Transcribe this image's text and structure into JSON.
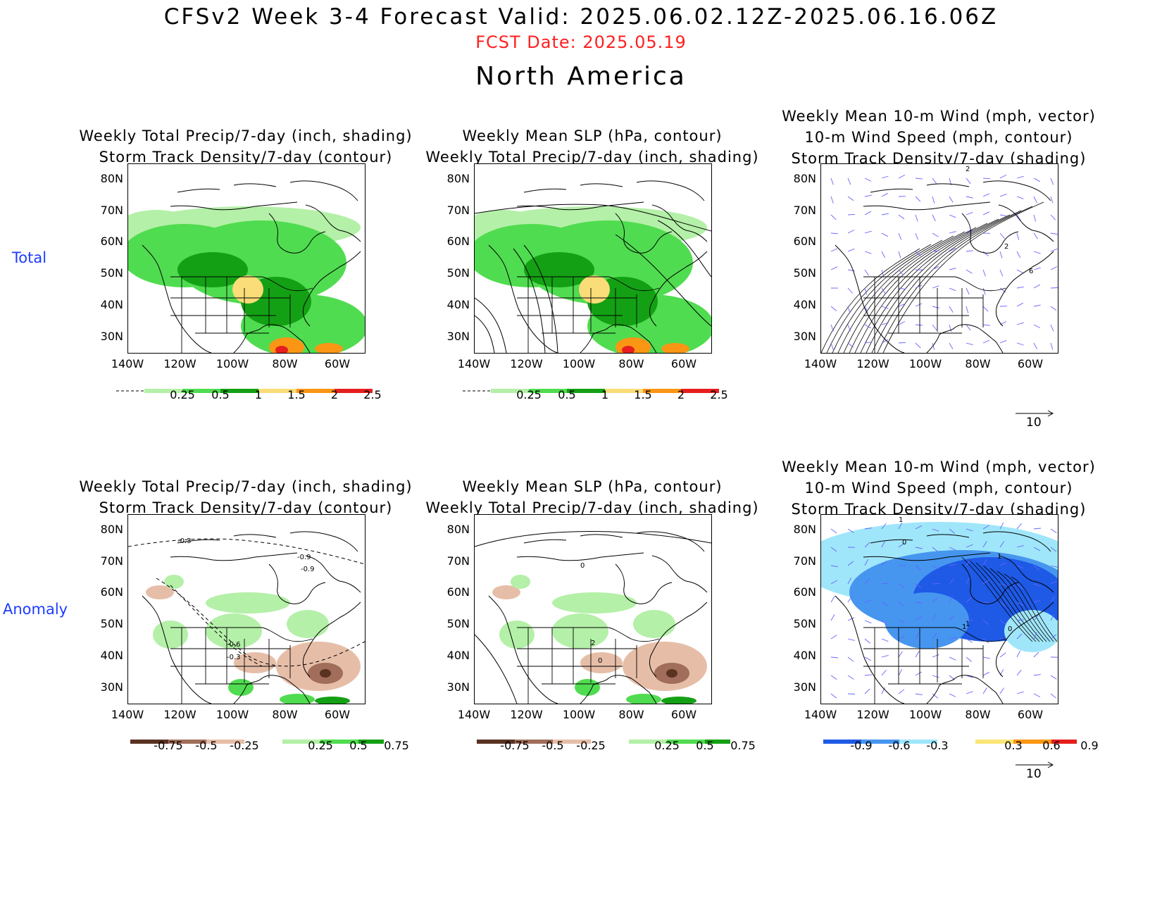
{
  "header": {
    "title": "CFSv2 Week 3-4 Forecast        Valid: 2025.06.02.12Z-2025.06.16.06Z",
    "fcst_date": "FCST Date: 2025.05.19",
    "region": "North America"
  },
  "row_labels": {
    "total": "Total",
    "anomaly": "Anomaly"
  },
  "axes": {
    "lat": [
      "80N",
      "70N",
      "60N",
      "50N",
      "40N",
      "30N"
    ],
    "lon": [
      "140W",
      "120W",
      "100W",
      "80W",
      "60W"
    ]
  },
  "panels": [
    {
      "id": "p1",
      "title": [
        "Weekly Total Precip/7-day (inch, shading)",
        "Storm Track Density/7-day (contour)"
      ],
      "colorbar": [
        "0.25",
        "0.5",
        "1",
        "1.5",
        "2",
        "2.5"
      ],
      "contours": []
    },
    {
      "id": "p2",
      "title": [
        "Weekly Mean SLP (hPa, contour)",
        "Weekly Total Precip/7-day (inch, shading)"
      ],
      "colorbar": [
        "0.25",
        "0.5",
        "1",
        "1.5",
        "2",
        "2.5"
      ],
      "contours": [
        "1017.5",
        "1015",
        "1012.5",
        "1010"
      ]
    },
    {
      "id": "p3",
      "title": [
        "Weekly Mean 10-m Wind (mph, vector)",
        "10-m Wind Speed (mph, contour)",
        "Storm Track Density/7-day (shading)"
      ],
      "colorbar": [],
      "vector_ref": "10",
      "contours": [
        "2",
        "2",
        "6"
      ]
    },
    {
      "id": "p4",
      "title": [
        "Weekly Total Precip/7-day (inch, shading)",
        "Storm Track Density/7-day (contour)"
      ],
      "colorbar": [
        "-0.75",
        "-0.5",
        "-0.25",
        "0.25",
        "0.5",
        "0.75"
      ],
      "contours": [
        "-0.3",
        "-0.9",
        "-0.9",
        "-0.6",
        "-0.3"
      ]
    },
    {
      "id": "p5",
      "title": [
        "Weekly Mean SLP (hPa, contour)",
        "Weekly Total Precip/7-day (inch, shading)"
      ],
      "colorbar": [
        "-0.75",
        "-0.5",
        "-0.25",
        "0.25",
        "0.5",
        "0.75"
      ],
      "contours": [
        "0",
        "2",
        "0"
      ]
    },
    {
      "id": "p6",
      "title": [
        "Weekly Mean 10-m Wind (mph, vector)",
        "10-m Wind Speed (mph, contour)",
        "Storm Track Density/7-day (shading)"
      ],
      "colorbar": [
        "-0.9",
        "-0.6",
        "-0.3",
        "0.3",
        "0.6",
        "0.9"
      ],
      "vector_ref": "10",
      "contours": [
        "1",
        "0",
        "1",
        "1",
        "1",
        "0"
      ]
    }
  ],
  "colors": {
    "precip_total": [
      "#b4f0a8",
      "#50dc50",
      "#14a014",
      "#fadc78",
      "#fa9614",
      "#e61e1e"
    ],
    "precip_anom": [
      "#5a3222",
      "#a06e5a",
      "#e6bea8",
      "#b4f0a8",
      "#50dc50",
      "#14a014"
    ],
    "storm_anom": [
      "#1e5ae6",
      "#4696f0",
      "#a0e6fa",
      "#fae678",
      "#fa9614",
      "#e61e1e"
    ],
    "vector": "#6464ff"
  }
}
